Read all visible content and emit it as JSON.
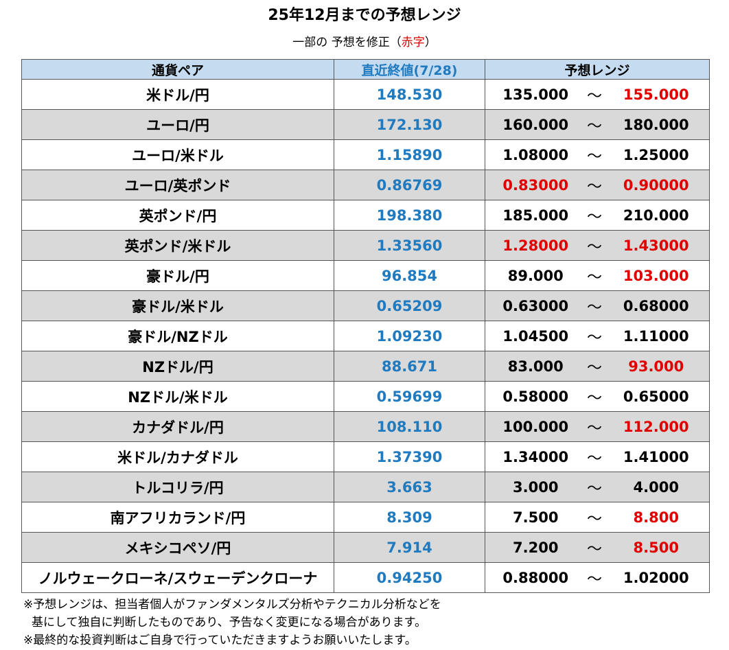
{
  "title": "25年12月までの予想レンジ",
  "subtitle": {
    "prefix": "一部の 予想を修正（",
    "red": "赤字",
    "suffix": "）"
  },
  "table": {
    "headers": {
      "pair": "通貨ペア",
      "close": "直近終値(7/28)",
      "range": "予想レンジ"
    },
    "tilde": "～",
    "rows": [
      {
        "pair": "米ドル/円",
        "close": "148.530",
        "low": "135.000",
        "high": "155.000",
        "low_red": false,
        "high_red": true
      },
      {
        "pair": "ユーロ/円",
        "close": "172.130",
        "low": "160.000",
        "high": "180.000",
        "low_red": false,
        "high_red": false
      },
      {
        "pair": "ユーロ/米ドル",
        "close": "1.15890",
        "low": "1.08000",
        "high": "1.25000",
        "low_red": false,
        "high_red": false
      },
      {
        "pair": "ユーロ/英ポンド",
        "close": "0.86769",
        "low": "0.83000",
        "high": "0.90000",
        "low_red": true,
        "high_red": true
      },
      {
        "pair": "英ポンド/円",
        "close": "198.380",
        "low": "185.000",
        "high": "210.000",
        "low_red": false,
        "high_red": false
      },
      {
        "pair": "英ポンド/米ドル",
        "close": "1.33560",
        "low": "1.28000",
        "high": "1.43000",
        "low_red": true,
        "high_red": true
      },
      {
        "pair": "豪ドル/円",
        "close": "96.854",
        "low": "89.000",
        "high": "103.000",
        "low_red": false,
        "high_red": true
      },
      {
        "pair": "豪ドル/米ドル",
        "close": "0.65209",
        "low": "0.63000",
        "high": "0.68000",
        "low_red": false,
        "high_red": false
      },
      {
        "pair": "豪ドル/NZドル",
        "close": "1.09230",
        "low": "1.04500",
        "high": "1.11000",
        "low_red": false,
        "high_red": false
      },
      {
        "pair": "NZドル/円",
        "close": "88.671",
        "low": "83.000",
        "high": "93.000",
        "low_red": false,
        "high_red": true
      },
      {
        "pair": "NZドル/米ドル",
        "close": "0.59699",
        "low": "0.58000",
        "high": "0.65000",
        "low_red": false,
        "high_red": false
      },
      {
        "pair": "カナダドル/円",
        "close": "108.110",
        "low": "100.000",
        "high": "112.000",
        "low_red": false,
        "high_red": true
      },
      {
        "pair": "米ドル/カナダドル",
        "close": "1.37390",
        "low": "1.34000",
        "high": "1.41000",
        "low_red": false,
        "high_red": false
      },
      {
        "pair": "トルコリラ/円",
        "close": "3.663",
        "low": "3.000",
        "high": "4.000",
        "low_red": false,
        "high_red": false
      },
      {
        "pair": "南アフリカランド/円",
        "close": "8.309",
        "low": "7.500",
        "high": "8.800",
        "low_red": false,
        "high_red": true
      },
      {
        "pair": "メキシコペソ/円",
        "close": "7.914",
        "low": "7.200",
        "high": "8.500",
        "low_red": false,
        "high_red": true
      },
      {
        "pair": "ノルウェークローネ/スウェーデンクローナ",
        "close": "0.94250",
        "low": "0.88000",
        "high": "1.02000",
        "low_red": false,
        "high_red": false
      }
    ]
  },
  "notes": [
    "※予想レンジは、担当者個人がファンダメンタルズ分析やテクニカル分析などを",
    "基にして独自に判断したものであり、予告なく変更になる場合があります。",
    "※最終的な投資判断はご自身で行っていただきますようお願いいたします。"
  ],
  "colors": {
    "header_bg": "#c5dcf0",
    "close_blue": "#1f7ac0",
    "revised_red": "#e00000",
    "alt_row_gray": "#d9d9d9"
  }
}
